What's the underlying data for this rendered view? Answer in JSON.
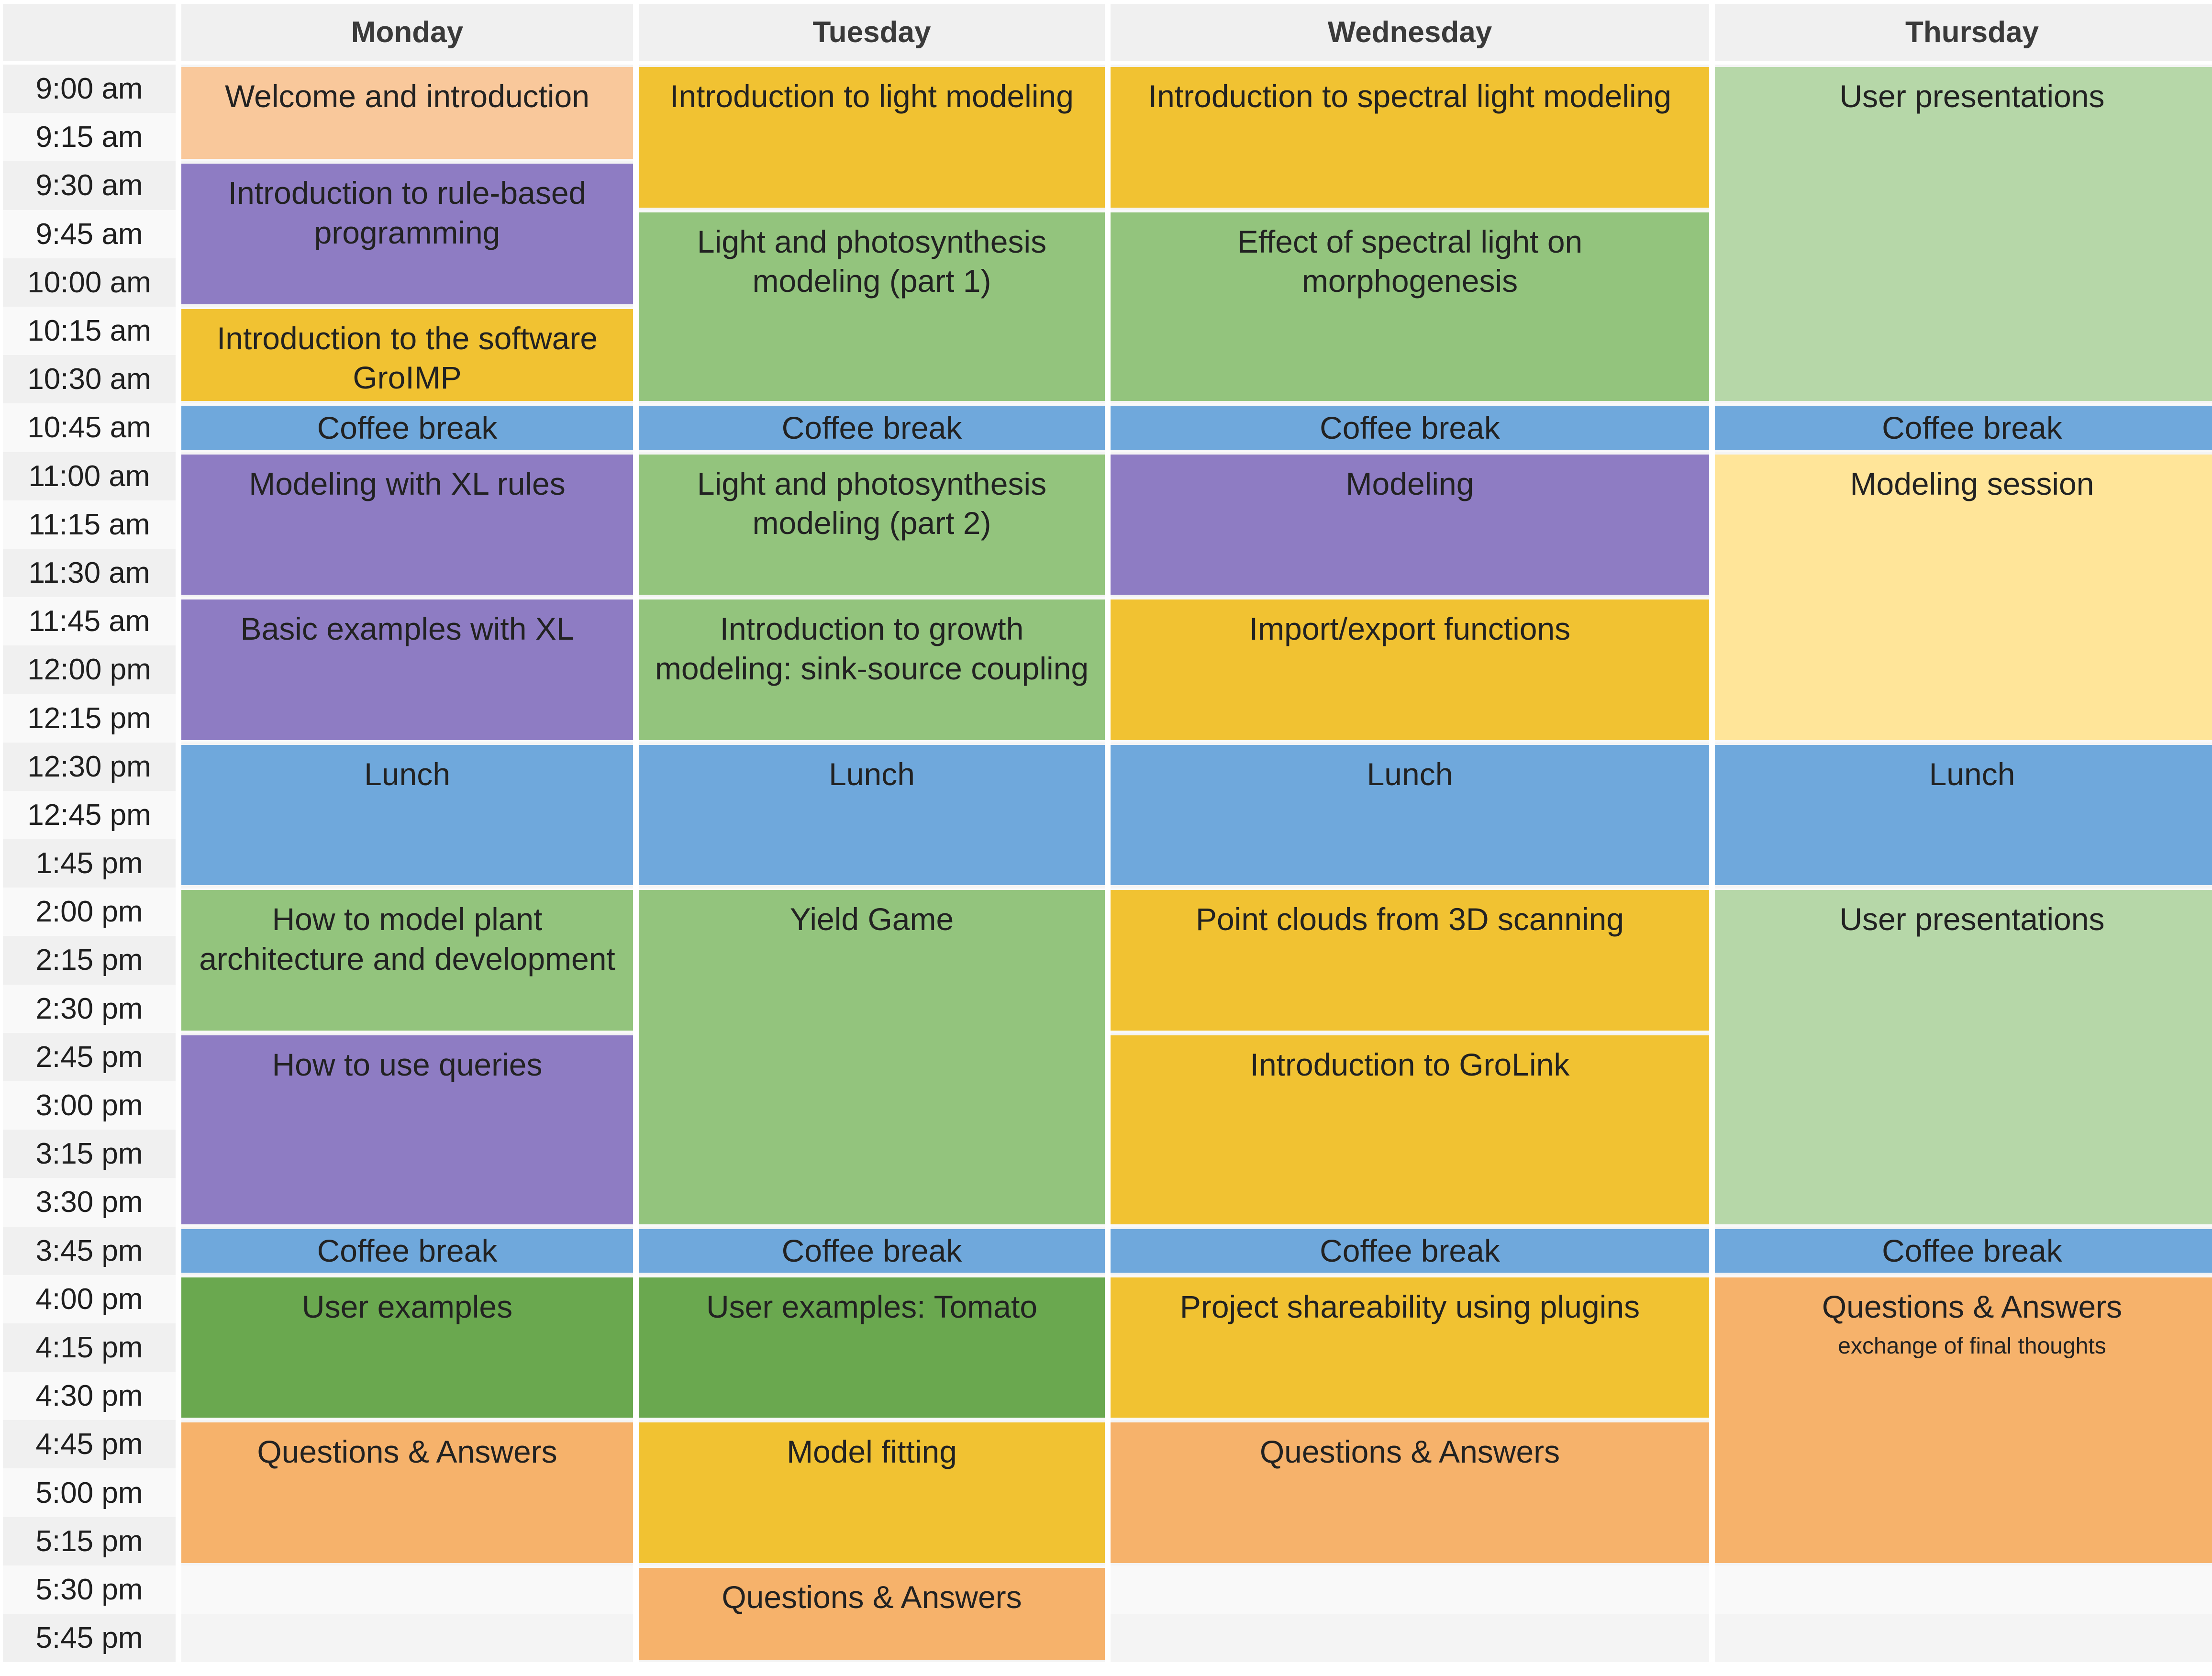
{
  "days": [
    "Monday",
    "Tuesday",
    "Wednesday",
    "Thursday"
  ],
  "times": [
    "9:00 am",
    "9:15 am",
    "9:30 am",
    "9:45 am",
    "10:00 am",
    "10:15 am",
    "10:30 am",
    "10:45 am",
    "11:00 am",
    "11:15 am",
    "11:30 am",
    "11:45 am",
    "12:00 pm",
    "12:15 pm",
    "12:30 pm",
    "12:45 pm",
    "1:45 pm",
    "2:00 pm",
    "2:15 pm",
    "2:30 pm",
    "2:45 pm",
    "3:00 pm",
    "3:15 pm",
    "3:30 pm",
    "3:45 pm",
    "4:00 pm",
    "4:15 pm",
    "4:30 pm",
    "4:45 pm",
    "5:00 pm",
    "5:15 pm",
    "5:30 pm",
    "5:45 pm"
  ],
  "category_colors": {
    "welcome": "#f9c89b",
    "programming": "#8e7cc3",
    "software": "#f1c232",
    "break": "#6fa8dc",
    "modeling": "#93c47d",
    "user_examples": "#6aa84f",
    "qa": "#f6b26b",
    "presentations": "#b6d7a8",
    "session": "#ffe599"
  },
  "sessions": [
    {
      "day": 0,
      "start": 0,
      "end": 2,
      "category": "welcome",
      "title": "Welcome and introduction",
      "subtitle": ""
    },
    {
      "day": 0,
      "start": 2,
      "end": 5,
      "category": "programming",
      "title": "Introduction to rule-based programming",
      "subtitle": ""
    },
    {
      "day": 0,
      "start": 5,
      "end": 7,
      "category": "software",
      "title": "Introduction to the software GroIMP",
      "subtitle": ""
    },
    {
      "day": 0,
      "start": 7,
      "end": 8,
      "category": "break",
      "title": "Coffee break",
      "subtitle": ""
    },
    {
      "day": 0,
      "start": 8,
      "end": 11,
      "category": "programming",
      "title": "Modeling with XL rules",
      "subtitle": ""
    },
    {
      "day": 0,
      "start": 11,
      "end": 14,
      "category": "programming",
      "title": "Basic examples with XL",
      "subtitle": ""
    },
    {
      "day": 0,
      "start": 14,
      "end": 17,
      "category": "break",
      "title": "Lunch",
      "subtitle": ""
    },
    {
      "day": 0,
      "start": 17,
      "end": 20,
      "category": "modeling",
      "title": "How to model plant architecture and development",
      "subtitle": ""
    },
    {
      "day": 0,
      "start": 20,
      "end": 24,
      "category": "programming",
      "title": "How to use queries",
      "subtitle": ""
    },
    {
      "day": 0,
      "start": 24,
      "end": 25,
      "category": "break",
      "title": "Coffee break",
      "subtitle": ""
    },
    {
      "day": 0,
      "start": 25,
      "end": 28,
      "category": "user_examples",
      "title": "User examples",
      "subtitle": ""
    },
    {
      "day": 0,
      "start": 28,
      "end": 31,
      "category": "qa",
      "title": "Questions & Answers",
      "subtitle": ""
    },
    {
      "day": 1,
      "start": 0,
      "end": 3,
      "category": "software",
      "title": "Introduction to light modeling",
      "subtitle": ""
    },
    {
      "day": 1,
      "start": 3,
      "end": 7,
      "category": "modeling",
      "title": "Light and photosynthesis modeling (part 1)",
      "subtitle": ""
    },
    {
      "day": 1,
      "start": 7,
      "end": 8,
      "category": "break",
      "title": "Coffee break",
      "subtitle": ""
    },
    {
      "day": 1,
      "start": 8,
      "end": 11,
      "category": "modeling",
      "title": "Light and photosynthesis modeling (part 2)",
      "subtitle": ""
    },
    {
      "day": 1,
      "start": 11,
      "end": 14,
      "category": "modeling",
      "title": "Introduction to growth modeling: sink-source coupling",
      "subtitle": ""
    },
    {
      "day": 1,
      "start": 14,
      "end": 17,
      "category": "break",
      "title": "Lunch",
      "subtitle": ""
    },
    {
      "day": 1,
      "start": 17,
      "end": 24,
      "category": "modeling",
      "title": "Yield Game",
      "subtitle": ""
    },
    {
      "day": 1,
      "start": 24,
      "end": 25,
      "category": "break",
      "title": "Coffee break",
      "subtitle": ""
    },
    {
      "day": 1,
      "start": 25,
      "end": 28,
      "category": "user_examples",
      "title": "User examples: Tomato",
      "subtitle": ""
    },
    {
      "day": 1,
      "start": 28,
      "end": 31,
      "category": "software",
      "title": "Model fitting",
      "subtitle": ""
    },
    {
      "day": 1,
      "start": 31,
      "end": 33,
      "category": "qa",
      "title": "Questions & Answers",
      "subtitle": ""
    },
    {
      "day": 2,
      "start": 0,
      "end": 3,
      "category": "software",
      "title": "Introduction to spectral light modeling",
      "subtitle": ""
    },
    {
      "day": 2,
      "start": 3,
      "end": 7,
      "category": "modeling",
      "title": "Effect of spectral light on morphogenesis",
      "subtitle": ""
    },
    {
      "day": 2,
      "start": 7,
      "end": 8,
      "category": "break",
      "title": "Coffee break",
      "subtitle": ""
    },
    {
      "day": 2,
      "start": 8,
      "end": 11,
      "category": "programming",
      "title": "Modeling",
      "subtitle": ""
    },
    {
      "day": 2,
      "start": 11,
      "end": 14,
      "category": "software",
      "title": "Import/export functions",
      "subtitle": ""
    },
    {
      "day": 2,
      "start": 14,
      "end": 17,
      "category": "break",
      "title": "Lunch",
      "subtitle": ""
    },
    {
      "day": 2,
      "start": 17,
      "end": 20,
      "category": "software",
      "title": "Point clouds from 3D scanning",
      "subtitle": ""
    },
    {
      "day": 2,
      "start": 20,
      "end": 24,
      "category": "software",
      "title": "Introduction to GroLink",
      "subtitle": ""
    },
    {
      "day": 2,
      "start": 24,
      "end": 25,
      "category": "break",
      "title": "Coffee break",
      "subtitle": ""
    },
    {
      "day": 2,
      "start": 25,
      "end": 28,
      "category": "software",
      "title": "Project shareability using plugins",
      "subtitle": ""
    },
    {
      "day": 2,
      "start": 28,
      "end": 31,
      "category": "qa",
      "title": "Questions & Answers",
      "subtitle": ""
    },
    {
      "day": 3,
      "start": 0,
      "end": 7,
      "category": "presentations",
      "title": "User presentations",
      "subtitle": ""
    },
    {
      "day": 3,
      "start": 7,
      "end": 8,
      "category": "break",
      "title": "Coffee break",
      "subtitle": ""
    },
    {
      "day": 3,
      "start": 8,
      "end": 14,
      "category": "session",
      "title": "Modeling session",
      "subtitle": ""
    },
    {
      "day": 3,
      "start": 14,
      "end": 17,
      "category": "break",
      "title": "Lunch",
      "subtitle": ""
    },
    {
      "day": 3,
      "start": 17,
      "end": 24,
      "category": "presentations",
      "title": "User presentations",
      "subtitle": ""
    },
    {
      "day": 3,
      "start": 24,
      "end": 25,
      "category": "break",
      "title": "Coffee break",
      "subtitle": ""
    },
    {
      "day": 3,
      "start": 25,
      "end": 31,
      "category": "qa",
      "title": "Questions & Answers",
      "subtitle": "exchange of final thoughts"
    }
  ]
}
